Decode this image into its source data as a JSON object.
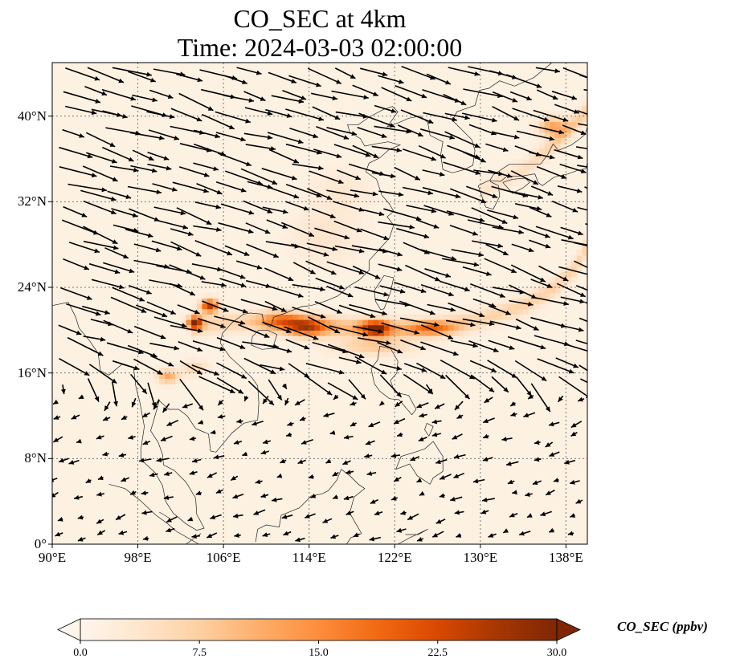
{
  "title": {
    "line1": "CO_SEC at 4km",
    "line2": "Time: 2024-03-03 02:00:00"
  },
  "map": {
    "projection": "PlateCarree",
    "lon_range": [
      90,
      140
    ],
    "lat_range": [
      0,
      45
    ],
    "lon_ticks": [
      {
        "value": 90,
        "label": "90°E"
      },
      {
        "value": 98,
        "label": "98°E"
      },
      {
        "value": 106,
        "label": "106°E"
      },
      {
        "value": 114,
        "label": "114°E"
      },
      {
        "value": 122,
        "label": "122°E"
      },
      {
        "value": 130,
        "label": "130°E"
      },
      {
        "value": 138,
        "label": "138°E"
      }
    ],
    "lat_ticks": [
      {
        "value": 0,
        "label": "0°"
      },
      {
        "value": 8,
        "label": "8°N"
      },
      {
        "value": 16,
        "label": "16°N"
      },
      {
        "value": 24,
        "label": "24°N"
      },
      {
        "value": 32,
        "label": "32°N"
      },
      {
        "value": 40,
        "label": "40°N"
      }
    ],
    "gridlines": true,
    "field": "CO_SEC",
    "background_level": 1.0,
    "hotspots": [
      {
        "lon": 103.3,
        "lat": 20.7,
        "value": 26,
        "lon_spread": 0.7,
        "lat_spread": 0.6
      },
      {
        "lon": 104.7,
        "lat": 22.3,
        "value": 24,
        "lon_spread": 0.8,
        "lat_spread": 0.6
      },
      {
        "lon": 120.2,
        "lat": 20.2,
        "value": 24,
        "lon_spread": 1.3,
        "lat_spread": 0.7
      },
      {
        "lon": 113.8,
        "lat": 20.3,
        "value": 17,
        "lon_spread": 1.8,
        "lat_spread": 0.8
      },
      {
        "lon": 111.5,
        "lat": 21.0,
        "value": 12,
        "lon_spread": 2.0,
        "lat_spread": 0.8
      },
      {
        "lon": 100.8,
        "lat": 15.7,
        "value": 11,
        "lon_spread": 1.0,
        "lat_spread": 0.6
      },
      {
        "lon": 103.3,
        "lat": 16.5,
        "value": 6,
        "lon_spread": 1.2,
        "lat_spread": 0.6
      },
      {
        "lon": 125.5,
        "lat": 20.2,
        "value": 11,
        "lon_spread": 2.2,
        "lat_spread": 0.6
      },
      {
        "lon": 136.8,
        "lat": 39.0,
        "value": 12,
        "lon_spread": 1.3,
        "lat_spread": 0.9
      },
      {
        "lon": 115.5,
        "lat": 28.8,
        "value": 3,
        "lon_spread": 3.0,
        "lat_spread": 2.5
      },
      {
        "lon": 117.0,
        "lat": 33.0,
        "value": 2.5,
        "lon_spread": 2.5,
        "lat_spread": 2.0
      },
      {
        "lon": 120.0,
        "lat": 18.5,
        "value": 7,
        "lon_spread": 3.5,
        "lat_spread": 0.8
      }
    ],
    "plume_band": [
      {
        "lon": 103,
        "lat": 20.5,
        "value": 6
      },
      {
        "lon": 108,
        "lat": 20.8,
        "value": 6
      },
      {
        "lon": 112,
        "lat": 20.6,
        "value": 8
      },
      {
        "lon": 117,
        "lat": 20.3,
        "value": 9
      },
      {
        "lon": 122,
        "lat": 20.1,
        "value": 9
      },
      {
        "lon": 126,
        "lat": 20.3,
        "value": 8
      },
      {
        "lon": 130,
        "lat": 21.0,
        "value": 6
      },
      {
        "lon": 134,
        "lat": 22.3,
        "value": 6
      },
      {
        "lon": 137,
        "lat": 24.0,
        "value": 6
      },
      {
        "lon": 139,
        "lat": 26.0,
        "value": 6
      },
      {
        "lon": 140,
        "lat": 28.0,
        "value": 6
      }
    ],
    "upper_band": [
      {
        "lon": 130,
        "lat": 33.0,
        "value": 3
      },
      {
        "lon": 134,
        "lat": 35.0,
        "value": 4
      },
      {
        "lon": 137,
        "lat": 37.5,
        "value": 6
      },
      {
        "lon": 140,
        "lat": 40.5,
        "value": 7
      }
    ],
    "wind_field": {
      "north_u": 1.0,
      "north_v": -0.3,
      "south_u": -0.7,
      "south_v": -0.25,
      "transition_lat": 15
    }
  },
  "colorbar": {
    "label": "CO_SEC (ppbv)",
    "min": 0,
    "max": 30,
    "extend": "both",
    "ticks": [
      {
        "value": 0,
        "label": "0.0"
      },
      {
        "value": 7.5,
        "label": "7.5"
      },
      {
        "value": 15,
        "label": "15.0"
      },
      {
        "value": 22.5,
        "label": "22.5"
      },
      {
        "value": 30,
        "label": "30.0"
      }
    ],
    "colormap": [
      "#fff5eb",
      "#fee6ce",
      "#fdd0a2",
      "#fdae6b",
      "#fd8d3c",
      "#f16913",
      "#d94801",
      "#a63603",
      "#7f2704"
    ]
  }
}
